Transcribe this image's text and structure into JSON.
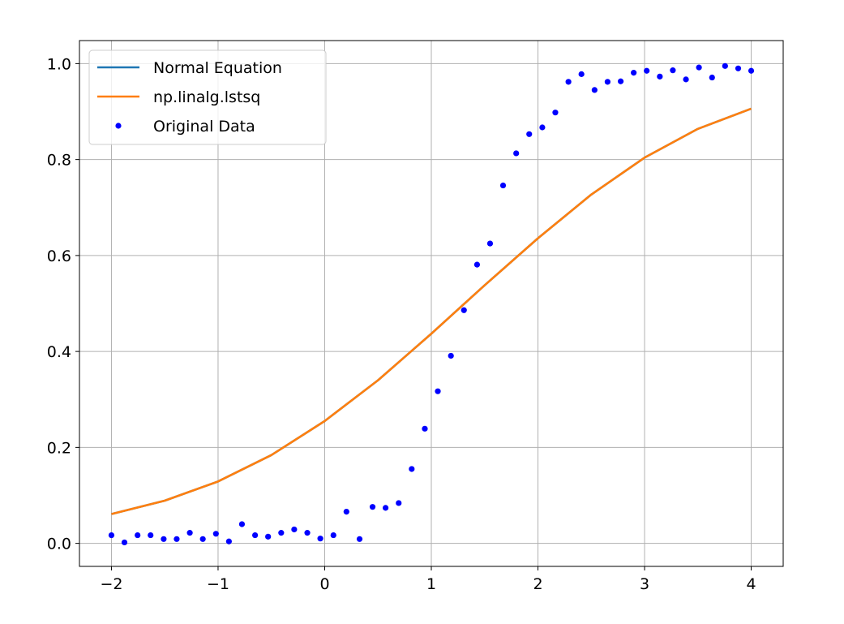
{
  "chart_data": {
    "type": "line",
    "title": "",
    "xlabel": "",
    "ylabel": "",
    "xlim": [
      -2.3,
      4.3
    ],
    "ylim": [
      -0.048,
      1.048
    ],
    "xticks": [
      -2,
      -1,
      0,
      1,
      2,
      3,
      4
    ],
    "xtick_labels": [
      "−2",
      "−1",
      "0",
      "1",
      "2",
      "3",
      "4"
    ],
    "yticks": [
      0.0,
      0.2,
      0.4,
      0.6,
      0.8,
      1.0
    ],
    "ytick_labels": [
      "0.0",
      "0.2",
      "0.4",
      "0.6",
      "0.8",
      "1.0"
    ],
    "grid": true,
    "legend_position": "top-left",
    "series": [
      {
        "name": "Normal Equation",
        "kind": "line",
        "color": "#1f77b4",
        "x": [
          -2.0,
          -1.5,
          -1.0,
          -0.5,
          0.0,
          0.5,
          1.0,
          1.5,
          2.0,
          2.5,
          3.0,
          3.5,
          4.0
        ],
        "y": [
          0.061,
          0.089,
          0.129,
          0.184,
          0.255,
          0.34,
          0.437,
          0.538,
          0.636,
          0.727,
          0.804,
          0.864,
          0.906
        ]
      },
      {
        "name": "np.linalg.lstsq",
        "kind": "line",
        "color": "#ff7f0e",
        "x": [
          -2.0,
          -1.5,
          -1.0,
          -0.5,
          0.0,
          0.5,
          1.0,
          1.5,
          2.0,
          2.5,
          3.0,
          3.5,
          4.0
        ],
        "y": [
          0.061,
          0.089,
          0.129,
          0.184,
          0.255,
          0.34,
          0.437,
          0.538,
          0.636,
          0.727,
          0.804,
          0.864,
          0.906
        ]
      },
      {
        "name": "Original Data",
        "kind": "scatter",
        "color": "#0000ff",
        "x": [
          -2.0,
          -1.878,
          -1.755,
          -1.633,
          -1.51,
          -1.388,
          -1.265,
          -1.143,
          -1.02,
          -0.898,
          -0.776,
          -0.653,
          -0.531,
          -0.408,
          -0.286,
          -0.163,
          -0.041,
          0.082,
          0.204,
          0.327,
          0.449,
          0.571,
          0.694,
          0.816,
          0.939,
          1.061,
          1.184,
          1.306,
          1.429,
          1.551,
          1.673,
          1.796,
          1.918,
          2.041,
          2.163,
          2.286,
          2.408,
          2.531,
          2.653,
          2.776,
          2.898,
          3.02,
          3.143,
          3.265,
          3.388,
          3.51,
          3.633,
          3.755,
          3.878,
          4.0
        ],
        "y": [
          0.017,
          0.002,
          0.017,
          0.017,
          0.009,
          0.009,
          0.022,
          0.009,
          0.02,
          0.004,
          0.04,
          0.017,
          0.014,
          0.022,
          0.029,
          0.022,
          0.01,
          0.017,
          0.066,
          0.009,
          0.076,
          0.074,
          0.084,
          0.155,
          0.239,
          0.317,
          0.391,
          0.486,
          0.581,
          0.625,
          0.746,
          0.813,
          0.853,
          0.867,
          0.898,
          0.962,
          0.978,
          0.945,
          0.962,
          0.963,
          0.981,
          0.985,
          0.973,
          0.986,
          0.967,
          0.992,
          0.971,
          0.995,
          0.99,
          0.985
        ]
      }
    ]
  }
}
